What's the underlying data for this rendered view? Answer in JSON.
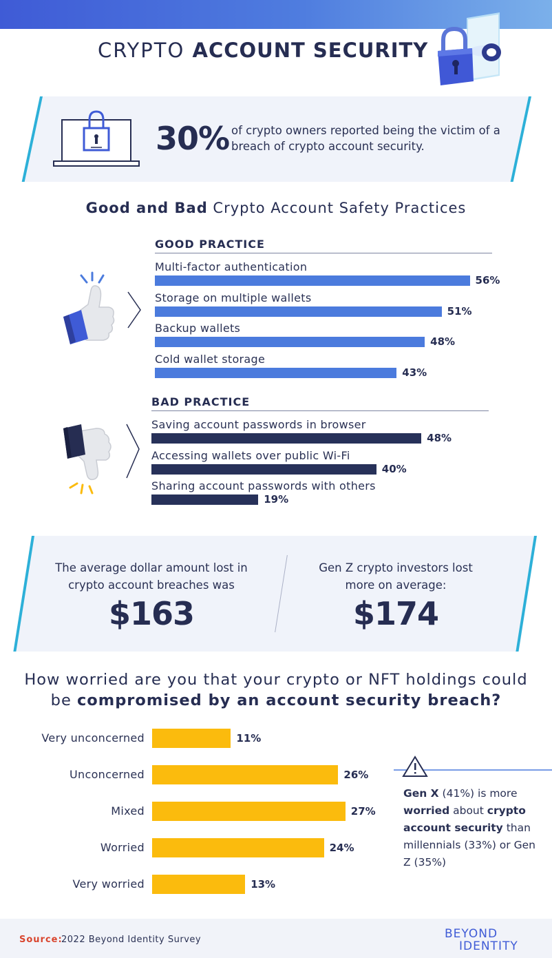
{
  "header": {
    "title_light": "CRYPTO",
    "title_bold": "ACCOUNT SECURITY",
    "icon": "padlock-icon",
    "accent_color": "#3f5bd6"
  },
  "stat": {
    "value": "30%",
    "text": "of crypto owners reported being the victim of a breach of crypto account security.",
    "icon": "laptop-lock-icon"
  },
  "practices": {
    "title_bold": "Good and Bad",
    "title_rest": "Crypto Account Safety Practices"
  },
  "money": {
    "left_text": "The average dollar amount lost in crypto account breaches was",
    "left_value": "$163",
    "right_text": "Gen Z crypto investors lost more on average:",
    "right_value": "$174"
  },
  "worry": {
    "title_line1": "How worried are you that your crypto or NFT holdings could",
    "title_line2_plain": "be ",
    "title_line2_bold": "compromised by an account security breach?"
  },
  "note": {
    "icon": "warning-icon",
    "p1_bold": "Gen X",
    "p2": " (41%) is more ",
    "p3_bold": "worried",
    "p4": " about ",
    "p5_bold": "crypto account security",
    "p6": " than millennials (33%) or Gen Z (35%)"
  },
  "footer": {
    "source_label": "Source:",
    "source_text": "2022 Beyond Identity Survey",
    "brand_line1": "BEYOND",
    "brand_line2": "IDENTITY"
  },
  "chart_data": [
    {
      "type": "bar",
      "orientation": "horizontal",
      "group_label": "GOOD PRACTICE",
      "categories": [
        "Multi-factor authentication",
        "Storage on multiple wallets",
        "Backup wallets",
        "Cold wallet storage"
      ],
      "values": [
        56,
        51,
        48,
        43
      ],
      "value_labels": [
        "56%",
        "51%",
        "48%",
        "43%"
      ],
      "color": "#4b7bdd",
      "icon": "thumbs-up-icon"
    },
    {
      "type": "bar",
      "orientation": "horizontal",
      "group_label": "BAD PRACTICE",
      "categories": [
        "Saving account passwords in browser",
        "Accessing wallets over public Wi-Fi",
        "Sharing account passwords with others"
      ],
      "values": [
        48,
        40,
        19
      ],
      "value_labels": [
        "48%",
        "40%",
        "19%"
      ],
      "color": "#273159",
      "icon": "thumbs-down-icon"
    },
    {
      "type": "bar",
      "orientation": "horizontal",
      "categories": [
        "Very unconcerned",
        "Unconcerned",
        "Mixed",
        "Worried",
        "Very worried"
      ],
      "values": [
        11,
        26,
        27,
        24,
        13
      ],
      "value_labels": [
        "11%",
        "26%",
        "27%",
        "24%",
        "13%"
      ],
      "color": "#fbbb0d"
    }
  ]
}
